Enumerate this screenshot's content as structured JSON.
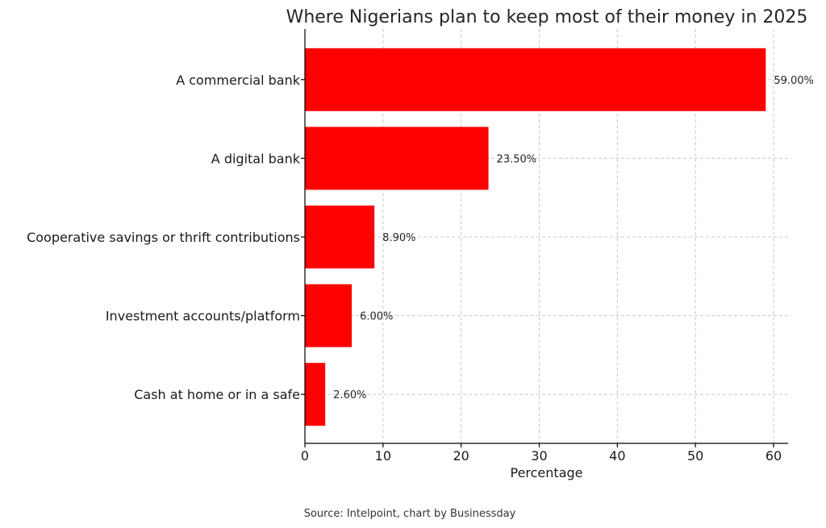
{
  "chart_data": {
    "type": "bar",
    "orientation": "horizontal",
    "title": "Where Nigerians plan to keep most of their money in 2025",
    "categories": [
      "A commercial bank",
      "A digital bank",
      "Cooperative savings or thrift contributions",
      "Investment accounts/platform",
      "Cash at home or in a safe"
    ],
    "values": [
      59.0,
      23.5,
      8.9,
      6.0,
      2.6
    ],
    "data_labels": [
      "59.00%",
      "23.50%",
      "8.90%",
      "6.00%",
      "2.60%"
    ],
    "xlabel": "Percentage",
    "ylabel": "",
    "xlim": [
      0,
      62
    ],
    "xticks": [
      0,
      10,
      20,
      30,
      40,
      50,
      60
    ],
    "grid": true,
    "bar_color": "#ff0000",
    "source": "Source: Intelpoint, chart by Businessday"
  }
}
